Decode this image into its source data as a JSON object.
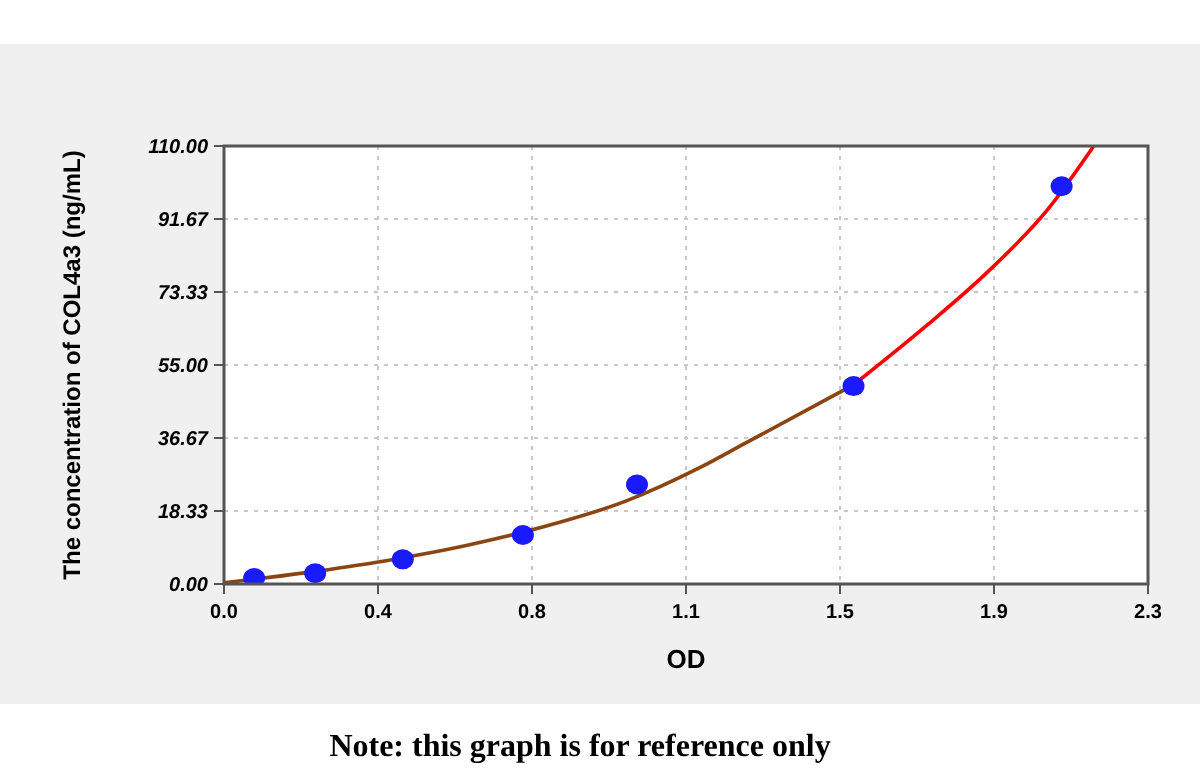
{
  "chart_data": {
    "type": "scatter",
    "xlabel": "OD",
    "ylabel": "The concentration of COL4a3 (ng/mL)",
    "xlim": [
      0,
      2.3
    ],
    "ylim": [
      0,
      110
    ],
    "xticks": [
      {
        "value": 0,
        "label": "0.0"
      },
      {
        "value": 0.3833,
        "label": "0.4"
      },
      {
        "value": 0.7667,
        "label": "0.8"
      },
      {
        "value": 1.15,
        "label": "1.1"
      },
      {
        "value": 1.5333,
        "label": "1.5"
      },
      {
        "value": 1.9167,
        "label": "1.9"
      },
      {
        "value": 2.3,
        "label": "2.3"
      }
    ],
    "yticks": [
      {
        "value": 0,
        "label": "0.00"
      },
      {
        "value": 18.33,
        "label": "18.33"
      },
      {
        "value": 36.67,
        "label": "36.67"
      },
      {
        "value": 55,
        "label": "55.00"
      },
      {
        "value": 73.33,
        "label": "73.33"
      },
      {
        "value": 91.67,
        "label": "91.67"
      },
      {
        "value": 110,
        "label": "110.00"
      }
    ],
    "grid": true,
    "series": [
      {
        "type": "line",
        "color": "#8b4513",
        "line_style": "solid",
        "x": [
          0,
          0.2,
          0.4,
          0.6,
          0.8,
          1.0,
          1.184,
          1.3,
          1.567
        ],
        "values": [
          0.3,
          2.8,
          5.8,
          9.6,
          14.5,
          20.8,
          29.2,
          35.5,
          50
        ]
      },
      {
        "type": "line",
        "color": "#ff0000",
        "line_style": "solid",
        "x": [
          1.567,
          1.75,
          1.897,
          2.05,
          2.165
        ],
        "values": [
          50,
          65,
          78,
          94,
          110
        ]
      },
      {
        "marker": "circle",
        "color": "#1a1aff",
        "x": [
          0.075,
          0.227,
          0.445,
          0.744,
          1.028,
          1.567,
          2.085
        ],
        "values": [
          1.5,
          2.7,
          6.2,
          12.3,
          25.0,
          49.7,
          99.9
        ]
      }
    ],
    "annotations": [
      "Note: this graph is for reference only"
    ]
  }
}
